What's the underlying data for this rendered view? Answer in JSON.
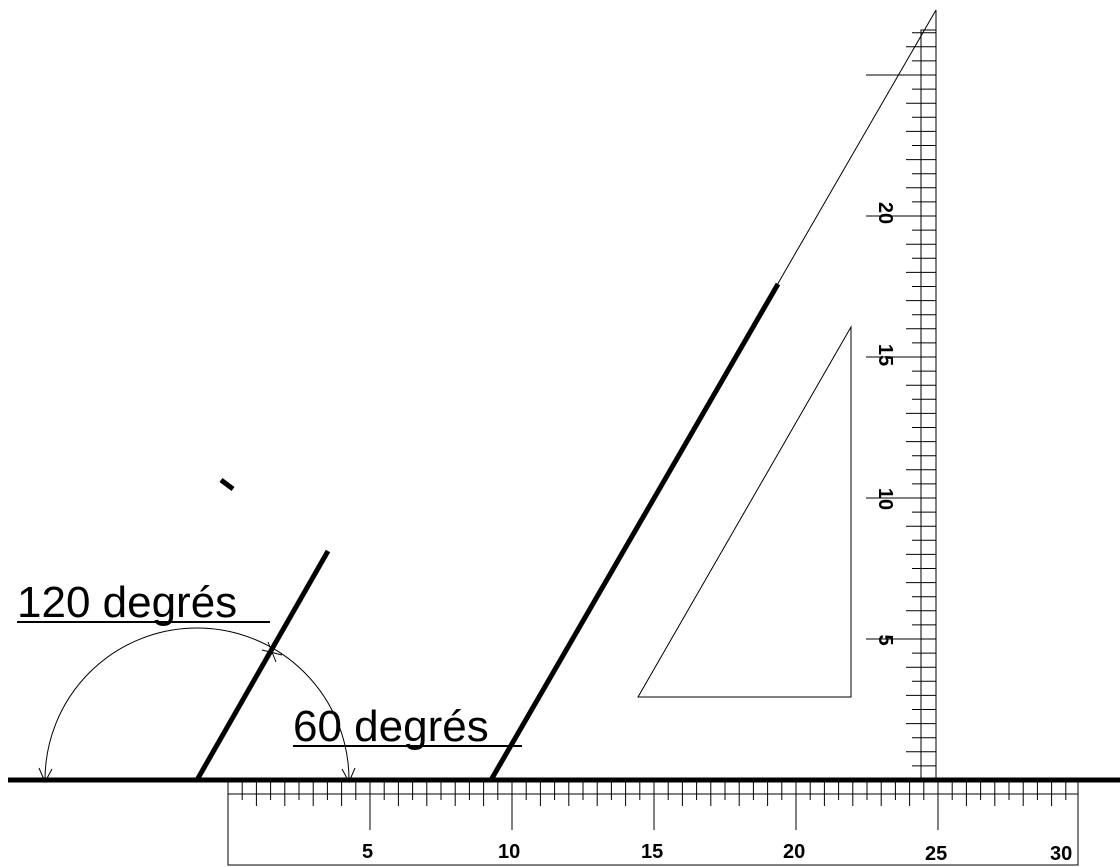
{
  "labels": {
    "angle_120": "120 degrés",
    "angle_60": "60 degrés"
  },
  "ruler": {
    "numbers": [
      "5",
      "10",
      "15",
      "20",
      "25",
      "30"
    ]
  },
  "set_square_scale": {
    "numbers": [
      "5",
      "10",
      "15",
      "20"
    ]
  },
  "colors": {
    "ink": "#000000",
    "background": "#ffffff"
  }
}
